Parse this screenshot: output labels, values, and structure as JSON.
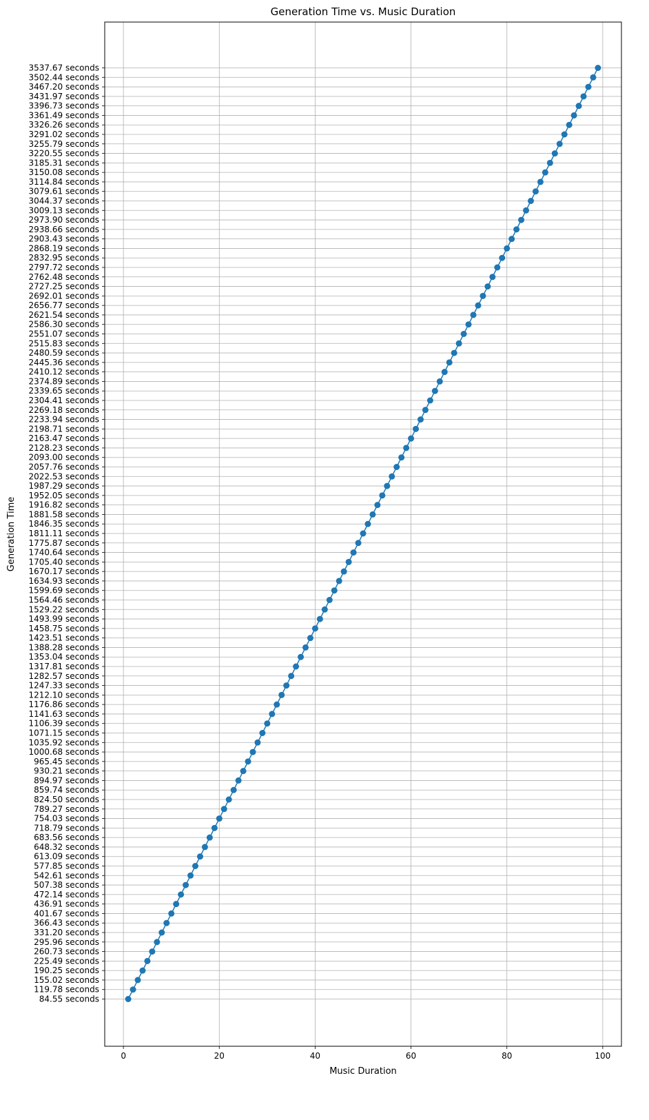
{
  "chart_data": {
    "type": "line",
    "title": "Generation Time vs. Music Duration",
    "xlabel": "Music Duration",
    "ylabel": "Generation Time",
    "xlim": [
      -3.9,
      103.9
    ],
    "x_ticks": [
      0,
      20,
      40,
      60,
      80,
      100
    ],
    "grid": true,
    "marker": "circle",
    "color": "#1f77b4",
    "x": [
      1,
      2,
      3,
      4,
      5,
      6,
      7,
      8,
      9,
      10,
      11,
      12,
      13,
      14,
      15,
      16,
      17,
      18,
      19,
      20,
      21,
      22,
      23,
      24,
      25,
      26,
      27,
      28,
      29,
      30,
      31,
      32,
      33,
      34,
      35,
      36,
      37,
      38,
      39,
      40,
      41,
      42,
      43,
      44,
      45,
      46,
      47,
      48,
      49,
      50,
      51,
      52,
      53,
      54,
      55,
      56,
      57,
      58,
      59,
      60,
      61,
      62,
      63,
      64,
      65,
      66,
      67,
      68,
      69,
      70,
      71,
      72,
      73,
      74,
      75,
      76,
      77,
      78,
      79,
      80,
      81,
      82,
      83,
      84,
      85,
      86,
      87,
      88,
      89,
      90,
      91,
      92,
      93,
      94,
      95,
      96,
      97,
      98,
      99
    ],
    "y_labels": [
      "84.55 seconds",
      "119.78 seconds",
      "155.02 seconds",
      "190.25 seconds",
      "225.49 seconds",
      "260.73 seconds",
      "295.96 seconds",
      "331.20 seconds",
      "366.43 seconds",
      "401.67 seconds",
      "436.91 seconds",
      "472.14 seconds",
      "507.38 seconds",
      "542.61 seconds",
      "577.85 seconds",
      "613.09 seconds",
      "648.32 seconds",
      "683.56 seconds",
      "718.79 seconds",
      "754.03 seconds",
      "789.27 seconds",
      "824.50 seconds",
      "859.74 seconds",
      "894.97 seconds",
      "930.21 seconds",
      "965.45 seconds",
      "1000.68 seconds",
      "1035.92 seconds",
      "1071.15 seconds",
      "1106.39 seconds",
      "1141.63 seconds",
      "1176.86 seconds",
      "1212.10 seconds",
      "1247.33 seconds",
      "1282.57 seconds",
      "1317.81 seconds",
      "1353.04 seconds",
      "1388.28 seconds",
      "1423.51 seconds",
      "1458.75 seconds",
      "1493.99 seconds",
      "1529.22 seconds",
      "1564.46 seconds",
      "1599.69 seconds",
      "1634.93 seconds",
      "1670.17 seconds",
      "1705.40 seconds",
      "1740.64 seconds",
      "1775.87 seconds",
      "1811.11 seconds",
      "1846.35 seconds",
      "1881.58 seconds",
      "1916.82 seconds",
      "1952.05 seconds",
      "1987.29 seconds",
      "2022.53 seconds",
      "2057.76 seconds",
      "2093.00 seconds",
      "2128.23 seconds",
      "2163.47 seconds",
      "2198.71 seconds",
      "2233.94 seconds",
      "2269.18 seconds",
      "2304.41 seconds",
      "2339.65 seconds",
      "2374.89 seconds",
      "2410.12 seconds",
      "2445.36 seconds",
      "2480.59 seconds",
      "2515.83 seconds",
      "2551.07 seconds",
      "2586.30 seconds",
      "2621.54 seconds",
      "2656.77 seconds",
      "2692.01 seconds",
      "2727.25 seconds",
      "2762.48 seconds",
      "2797.72 seconds",
      "2832.95 seconds",
      "2868.19 seconds",
      "2903.43 seconds",
      "2938.66 seconds",
      "2973.90 seconds",
      "3009.13 seconds",
      "3044.37 seconds",
      "3079.61 seconds",
      "3114.84 seconds",
      "3150.08 seconds",
      "3185.31 seconds",
      "3220.55 seconds",
      "3255.79 seconds",
      "3291.02 seconds",
      "3326.26 seconds",
      "3361.49 seconds",
      "3396.73 seconds",
      "3431.97 seconds",
      "3467.20 seconds",
      "3502.44 seconds",
      "3537.67 seconds"
    ]
  }
}
